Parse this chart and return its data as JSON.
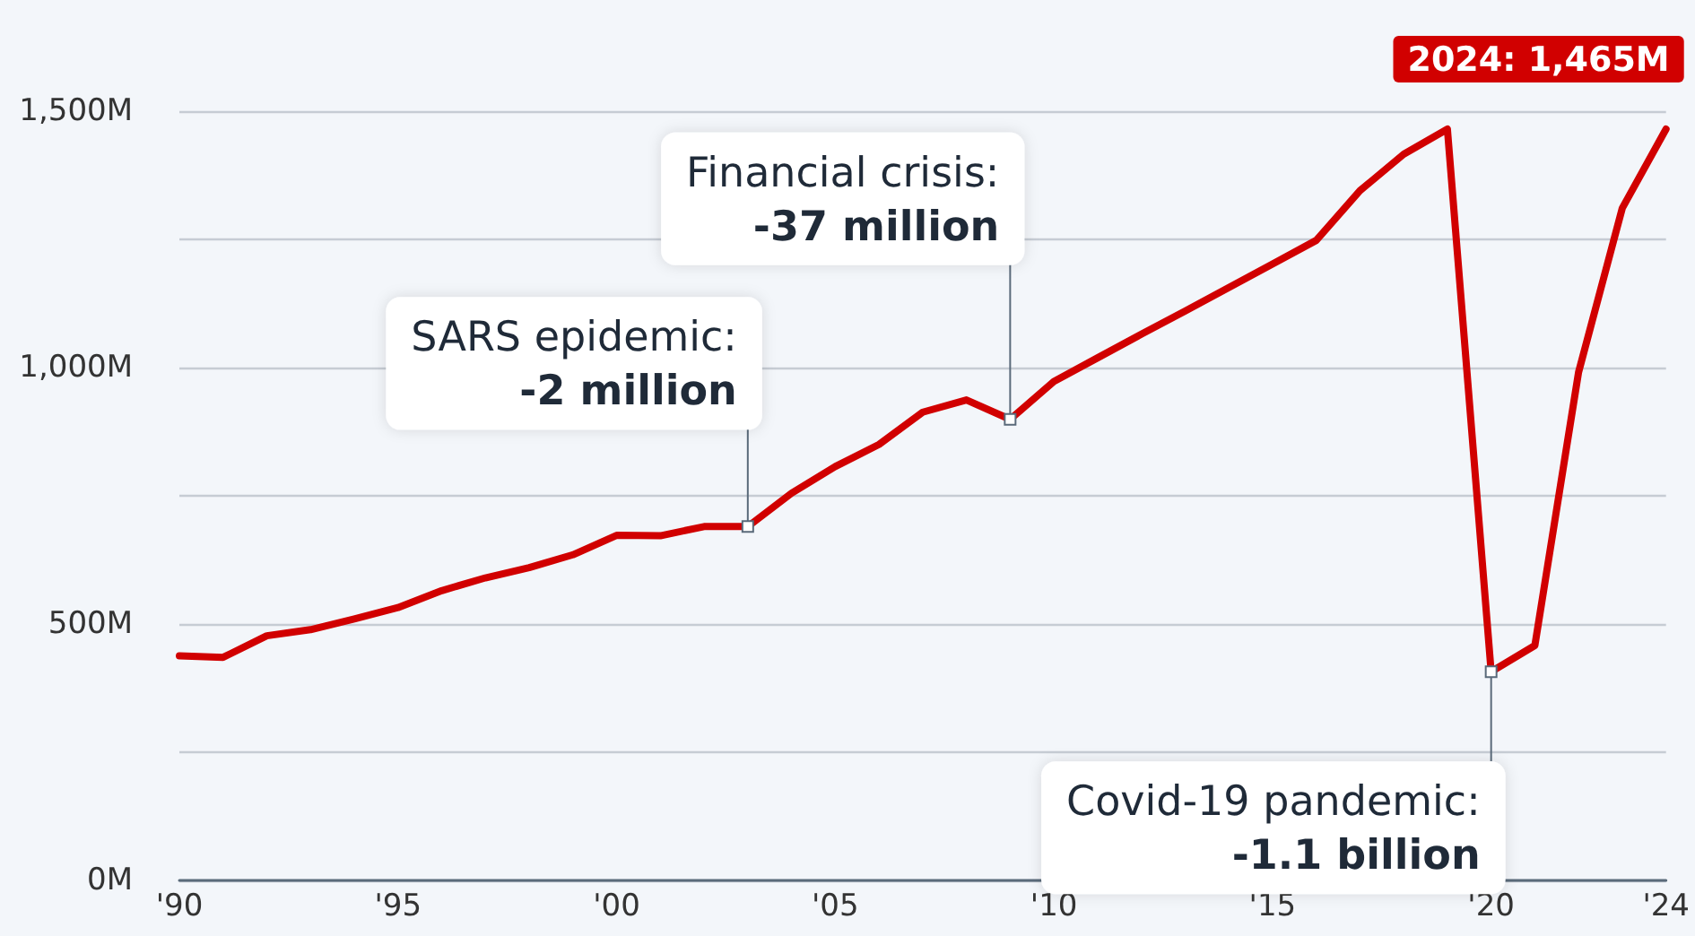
{
  "chart_data": {
    "type": "line",
    "x": [
      1990,
      1991,
      1992,
      1993,
      1994,
      1995,
      1996,
      1997,
      1998,
      1999,
      2000,
      2001,
      2002,
      2003,
      2004,
      2005,
      2006,
      2007,
      2008,
      2009,
      2010,
      2011,
      2012,
      2013,
      2014,
      2015,
      2016,
      2017,
      2018,
      2019,
      2020,
      2021,
      2022,
      2023,
      2024
    ],
    "series": [
      {
        "color": "#d10000",
        "values": [
          438,
          435,
          477,
          489,
          510,
          532,
          565,
          590,
          610,
          635,
          673,
          672,
          690,
          690,
          755,
          807,
          850,
          913,
          937,
          899,
          973,
          1019,
          1065,
          1110,
          1156,
          1202,
          1248,
          1345,
          1416,
          1465,
          407,
          458,
          991,
          1311,
          1465
        ]
      }
    ],
    "xlim": [
      1990,
      2024
    ],
    "xticks": [
      {
        "value": 1990,
        "label": "'90"
      },
      {
        "value": 1995,
        "label": "'95"
      },
      {
        "value": 2000,
        "label": "'00"
      },
      {
        "value": 2005,
        "label": "'05"
      },
      {
        "value": 2010,
        "label": "'10"
      },
      {
        "value": 2015,
        "label": "'15"
      },
      {
        "value": 2020,
        "label": "'20"
      },
      {
        "value": 2024,
        "label": "'24"
      }
    ],
    "ylim": [
      0,
      1500
    ],
    "yticks": [
      {
        "value": 0,
        "label": "0M"
      },
      {
        "value": 250,
        "label": null
      },
      {
        "value": 500,
        "label": "500M"
      },
      {
        "value": 750,
        "label": null
      },
      {
        "value": 1000,
        "label": "1,000M"
      },
      {
        "value": 1250,
        "label": null
      },
      {
        "value": 1500,
        "label": "1,500M"
      }
    ],
    "grid": "y",
    "marker": "none",
    "line_style": "solid",
    "annotations": [
      {
        "text": "SARS epidemic:\n-2 million",
        "x": 2003,
        "y": 690
      },
      {
        "text": "Financial crisis:\n-37 million",
        "x": 2009,
        "y": 899
      },
      {
        "text": "Covid-19 pandemic:\n-1.1 billion",
        "x": 2020,
        "y": 407
      },
      {
        "text": "2024: 1,465M",
        "x": 2024,
        "y": 1465
      }
    ]
  }
}
